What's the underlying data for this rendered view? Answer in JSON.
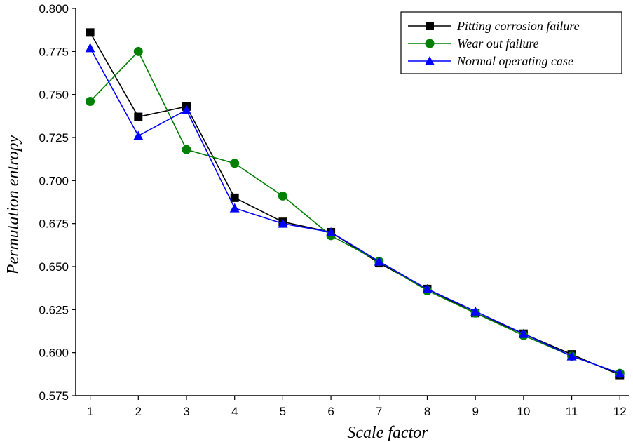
{
  "chart_data": {
    "type": "line",
    "title": "",
    "xlabel": "Scale factor",
    "ylabel": "Permutation entropy",
    "x": [
      1,
      2,
      3,
      4,
      5,
      6,
      7,
      8,
      9,
      10,
      11,
      12
    ],
    "xlim": [
      0.7,
      12.2
    ],
    "ylim": [
      0.575,
      0.8
    ],
    "yticks": [
      "0.575",
      "0.600",
      "0.625",
      "0.650",
      "0.675",
      "0.700",
      "0.725",
      "0.750",
      "0.775",
      "0.800"
    ],
    "grid": false,
    "legend_position": "top-right",
    "series": [
      {
        "name": "Pitting corrosion failure",
        "color": "#000000",
        "marker": "square",
        "values": [
          0.786,
          0.737,
          0.743,
          0.69,
          0.676,
          0.67,
          0.652,
          0.637,
          0.623,
          0.611,
          0.599,
          0.587
        ]
      },
      {
        "name": "Wear out failure",
        "color": "#008000",
        "marker": "circle",
        "values": [
          0.746,
          0.775,
          0.718,
          0.71,
          0.691,
          0.668,
          0.653,
          0.636,
          0.623,
          0.61,
          0.598,
          0.588
        ]
      },
      {
        "name": "Normal operating case",
        "color": "#0000ff",
        "marker": "triangle",
        "values": [
          0.777,
          0.726,
          0.741,
          0.684,
          0.675,
          0.67,
          0.653,
          0.637,
          0.624,
          0.611,
          0.598,
          0.588
        ]
      }
    ]
  }
}
